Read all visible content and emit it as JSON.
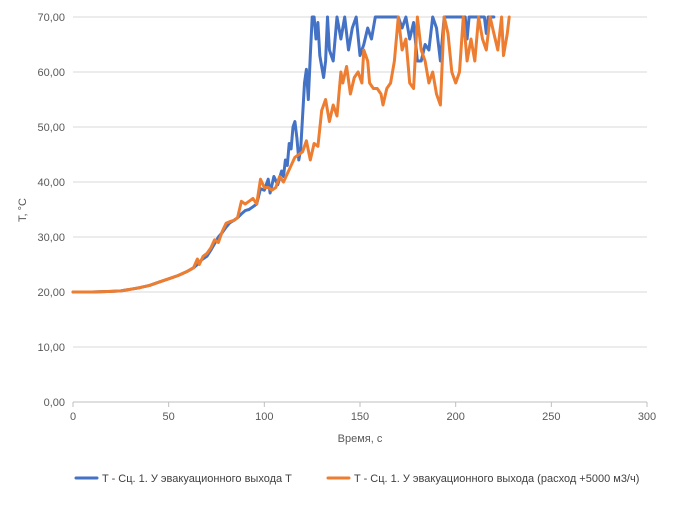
{
  "chart_data": {
    "type": "line",
    "title": "",
    "xlabel": "Время, с",
    "ylabel": "T, °C",
    "xlim": [
      0,
      300
    ],
    "ylim": [
      0,
      70
    ],
    "x_ticks": [
      0,
      50,
      100,
      150,
      200,
      250,
      300
    ],
    "y_ticks": [
      0,
      10,
      20,
      30,
      40,
      50,
      60,
      70
    ],
    "x_tick_labels": [
      "0",
      "50",
      "100",
      "150",
      "200",
      "250",
      "300"
    ],
    "y_tick_labels": [
      "0,00",
      "10,00",
      "20,00",
      "30,00",
      "40,00",
      "50,00",
      "60,00",
      "70,00"
    ],
    "grid": true,
    "legend_position": "bottom",
    "series": [
      {
        "name": "T - Сц. 1. У эвакуационного выхода T",
        "color": "#4472C4",
        "points": [
          [
            0,
            20.0
          ],
          [
            10,
            20.0
          ],
          [
            20,
            20.1
          ],
          [
            25,
            20.2
          ],
          [
            30,
            20.5
          ],
          [
            35,
            20.8
          ],
          [
            40,
            21.2
          ],
          [
            45,
            21.8
          ],
          [
            50,
            22.4
          ],
          [
            55,
            23.0
          ],
          [
            60,
            23.8
          ],
          [
            63,
            24.4
          ],
          [
            65,
            25.0
          ],
          [
            67,
            25.8
          ],
          [
            70,
            26.5
          ],
          [
            72,
            27.6
          ],
          [
            74,
            28.8
          ],
          [
            76,
            30.0
          ],
          [
            78,
            30.8
          ],
          [
            80,
            31.8
          ],
          [
            82,
            32.6
          ],
          [
            84,
            33.0
          ],
          [
            86,
            33.5
          ],
          [
            88,
            34.2
          ],
          [
            90,
            34.8
          ],
          [
            92,
            35.0
          ],
          [
            94,
            35.5
          ],
          [
            96,
            36.0
          ],
          [
            98,
            38.8
          ],
          [
            100,
            38.5
          ],
          [
            102,
            40.5
          ],
          [
            103,
            38.0
          ],
          [
            105,
            41.0
          ],
          [
            107,
            39.5
          ],
          [
            109,
            42.0
          ],
          [
            110,
            41.0
          ],
          [
            111,
            44.0
          ],
          [
            112,
            43.0
          ],
          [
            113,
            47.0
          ],
          [
            114,
            46.0
          ],
          [
            115,
            50.0
          ],
          [
            116,
            51.0
          ],
          [
            117,
            48.0
          ],
          [
            118,
            44.0
          ],
          [
            119,
            46.0
          ],
          [
            120,
            52.0
          ],
          [
            121,
            58.0
          ],
          [
            122,
            60.5
          ],
          [
            123,
            55.0
          ],
          [
            124,
            63.0
          ],
          [
            125,
            70.0
          ],
          [
            126,
            70.0
          ],
          [
            127,
            66.0
          ],
          [
            128,
            69.0
          ],
          [
            129,
            63.0
          ],
          [
            130,
            61.0
          ],
          [
            131,
            59.0
          ],
          [
            132,
            62.0
          ],
          [
            133,
            70.0
          ],
          [
            134,
            64.0
          ],
          [
            136,
            62.0
          ],
          [
            138,
            70.0
          ],
          [
            140,
            66.0
          ],
          [
            142,
            70.0
          ],
          [
            144,
            64.0
          ],
          [
            146,
            68.0
          ],
          [
            148,
            70.0
          ],
          [
            150,
            63.0
          ],
          [
            152,
            65.0
          ],
          [
            154,
            68.0
          ],
          [
            156,
            66.0
          ],
          [
            158,
            70.0
          ],
          [
            160,
            70.0
          ],
          [
            165,
            70.0
          ],
          [
            170,
            70.0
          ],
          [
            172,
            68.0
          ],
          [
            174,
            70.0
          ],
          [
            176,
            66.0
          ],
          [
            178,
            69.0
          ],
          [
            180,
            62.0
          ],
          [
            182,
            62.0
          ],
          [
            184,
            65.0
          ],
          [
            186,
            64.0
          ],
          [
            188,
            70.0
          ],
          [
            190,
            68.0
          ],
          [
            192,
            62.0
          ],
          [
            194,
            70.0
          ],
          [
            196,
            70.0
          ],
          [
            200,
            70.0
          ],
          [
            205,
            70.0
          ],
          [
            206,
            66.0
          ],
          [
            207,
            70.0
          ],
          [
            210,
            70.0
          ],
          [
            215,
            70.0
          ],
          [
            216,
            67.0
          ],
          [
            217,
            70.0
          ],
          [
            220,
            70.0
          ]
        ]
      },
      {
        "name": "T - Сц. 1. У эвакуационного выхода (расход +5000 м3/ч)",
        "color": "#ED7D31",
        "points": [
          [
            0,
            20.0
          ],
          [
            10,
            20.0
          ],
          [
            20,
            20.1
          ],
          [
            25,
            20.2
          ],
          [
            30,
            20.5
          ],
          [
            35,
            20.8
          ],
          [
            40,
            21.2
          ],
          [
            45,
            21.8
          ],
          [
            50,
            22.4
          ],
          [
            55,
            23.0
          ],
          [
            60,
            23.8
          ],
          [
            63,
            24.4
          ],
          [
            65,
            26.0
          ],
          [
            66,
            25.0
          ],
          [
            68,
            26.5
          ],
          [
            70,
            27.0
          ],
          [
            72,
            28.0
          ],
          [
            74,
            29.5
          ],
          [
            76,
            29.0
          ],
          [
            78,
            31.0
          ],
          [
            80,
            32.5
          ],
          [
            82,
            32.8
          ],
          [
            84,
            33.0
          ],
          [
            86,
            33.5
          ],
          [
            88,
            36.5
          ],
          [
            90,
            36.0
          ],
          [
            92,
            36.5
          ],
          [
            94,
            37.0
          ],
          [
            96,
            36.0
          ],
          [
            98,
            40.5
          ],
          [
            100,
            39.0
          ],
          [
            102,
            39.0
          ],
          [
            104,
            38.5
          ],
          [
            106,
            39.0
          ],
          [
            108,
            41.0
          ],
          [
            110,
            40.0
          ],
          [
            112,
            41.5
          ],
          [
            114,
            43.0
          ],
          [
            116,
            44.5
          ],
          [
            118,
            45.0
          ],
          [
            120,
            45.5
          ],
          [
            122,
            47.5
          ],
          [
            124,
            44.0
          ],
          [
            126,
            47.0
          ],
          [
            128,
            46.5
          ],
          [
            130,
            53.0
          ],
          [
            132,
            55.0
          ],
          [
            134,
            51.0
          ],
          [
            136,
            54.0
          ],
          [
            138,
            52.0
          ],
          [
            140,
            60.0
          ],
          [
            141,
            58.0
          ],
          [
            143,
            61.0
          ],
          [
            145,
            56.0
          ],
          [
            147,
            59.0
          ],
          [
            149,
            60.0
          ],
          [
            151,
            58.0
          ],
          [
            152,
            64.0
          ],
          [
            154,
            62.0
          ],
          [
            155,
            58.0
          ],
          [
            157,
            57.0
          ],
          [
            159,
            57.0
          ],
          [
            161,
            56.0
          ],
          [
            162,
            54.0
          ],
          [
            164,
            57.0
          ],
          [
            166,
            58.0
          ],
          [
            168,
            62.0
          ],
          [
            170,
            70.0
          ],
          [
            172,
            64.0
          ],
          [
            174,
            66.0
          ],
          [
            176,
            58.0
          ],
          [
            178,
            57.0
          ],
          [
            180,
            70.0
          ],
          [
            182,
            64.0
          ],
          [
            184,
            62.0
          ],
          [
            186,
            58.0
          ],
          [
            188,
            60.0
          ],
          [
            190,
            56.0
          ],
          [
            192,
            54.0
          ],
          [
            194,
            70.0
          ],
          [
            196,
            67.0
          ],
          [
            198,
            60.0
          ],
          [
            200,
            58.0
          ],
          [
            202,
            60.0
          ],
          [
            204,
            70.0
          ],
          [
            206,
            62.0
          ],
          [
            208,
            66.0
          ],
          [
            210,
            62.0
          ],
          [
            212,
            70.0
          ],
          [
            214,
            66.0
          ],
          [
            216,
            64.0
          ],
          [
            218,
            70.0
          ],
          [
            220,
            67.0
          ],
          [
            222,
            64.0
          ],
          [
            224,
            70.0
          ],
          [
            225,
            63.0
          ],
          [
            227,
            67.0
          ],
          [
            228,
            70.0
          ]
        ]
      }
    ]
  }
}
